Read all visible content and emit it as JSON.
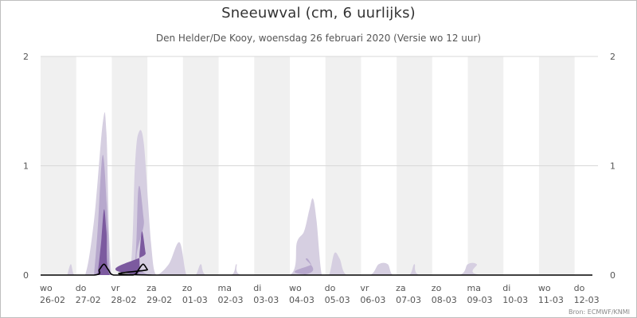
{
  "chart": {
    "title": "Sneeuwval (cm, 6 uurlijks)",
    "subtitle": "Den Helder/De Kooy, woensdag 26 februari 2020 (Versie wo 12 uur)",
    "source": "Bron: ECMWF/KNMI"
  },
  "colors": {
    "band_shade": "#f0f0f0",
    "outer_band": "#d6cfe1",
    "middle_band": "#b7a8cd",
    "inner_band": "#7c5a9f",
    "median_line": "#000000",
    "gridline": "#d8d8d8",
    "axis_text": "#555555"
  },
  "chart_data": {
    "type": "area",
    "x_unit": "day index (0 = wo 26-02 00:00), step 0.25 = 6 uur",
    "xlim": [
      0,
      15.5
    ],
    "ylim": [
      0,
      2
    ],
    "y_ticks": [
      0,
      1,
      2
    ],
    "grid": true,
    "shaded_alternate_days": true,
    "x_tick_labels": [
      {
        "day": "wo",
        "date": "26-02"
      },
      {
        "day": "do",
        "date": "27-02"
      },
      {
        "day": "vr",
        "date": "28-02"
      },
      {
        "day": "za",
        "date": "29-02"
      },
      {
        "day": "zo",
        "date": "01-03"
      },
      {
        "day": "ma",
        "date": "02-03"
      },
      {
        "day": "di",
        "date": "03-03"
      },
      {
        "day": "wo",
        "date": "04-03"
      },
      {
        "day": "do",
        "date": "05-03"
      },
      {
        "day": "vr",
        "date": "06-03"
      },
      {
        "day": "za",
        "date": "07-03"
      },
      {
        "day": "zo",
        "date": "08-03"
      },
      {
        "day": "ma",
        "date": "09-03"
      },
      {
        "day": "di",
        "date": "10-03"
      },
      {
        "day": "wo",
        "date": "11-03"
      },
      {
        "day": "do",
        "date": "12-03"
      }
    ],
    "series": [
      {
        "role": "outer_band",
        "points": [
          [
            0.75,
            0
          ],
          [
            0.85,
            0.1
          ],
          [
            0.95,
            0
          ],
          [
            1.25,
            0
          ],
          [
            1.5,
            0.5
          ],
          [
            1.75,
            1.4
          ],
          [
            1.85,
            1.3
          ],
          [
            2.0,
            0
          ],
          [
            2.5,
            0
          ],
          [
            2.65,
            1.0
          ],
          [
            2.75,
            1.3
          ],
          [
            2.9,
            1.2
          ],
          [
            3.1,
            0.3
          ],
          [
            3.25,
            0
          ],
          [
            3.6,
            0.1
          ],
          [
            3.9,
            0.3
          ],
          [
            4.1,
            0
          ],
          [
            4.35,
            0
          ],
          [
            4.5,
            0.1
          ],
          [
            4.65,
            0
          ],
          [
            5.35,
            0
          ],
          [
            5.5,
            0.1
          ],
          [
            5.65,
            0
          ],
          [
            7.0,
            0
          ],
          [
            7.2,
            0.3
          ],
          [
            7.4,
            0.4
          ],
          [
            7.55,
            0.6
          ],
          [
            7.65,
            0.7
          ],
          [
            7.75,
            0.5
          ],
          [
            7.9,
            0
          ],
          [
            8.1,
            0
          ],
          [
            8.25,
            0.2
          ],
          [
            8.4,
            0.15
          ],
          [
            8.6,
            0
          ],
          [
            9.25,
            0
          ],
          [
            9.5,
            0.1
          ],
          [
            9.75,
            0.1
          ],
          [
            9.9,
            0
          ],
          [
            10.35,
            0
          ],
          [
            10.5,
            0.1
          ],
          [
            10.65,
            0
          ],
          [
            11.75,
            0
          ],
          [
            12.0,
            0.1
          ],
          [
            12.25,
            0.1
          ],
          [
            12.4,
            0
          ],
          [
            15.5,
            0
          ]
        ]
      },
      {
        "role": "middle_band",
        "points": [
          [
            1.5,
            0
          ],
          [
            1.6,
            0.4
          ],
          [
            1.75,
            1.1
          ],
          [
            1.9,
            0.4
          ],
          [
            2.0,
            0
          ],
          [
            2.6,
            0
          ],
          [
            2.75,
            0.8
          ],
          [
            2.9,
            0.5
          ],
          [
            3.05,
            0
          ],
          [
            7.3,
            0
          ],
          [
            7.45,
            0.15
          ],
          [
            7.6,
            0.1
          ],
          [
            7.75,
            0
          ],
          [
            15.5,
            0
          ]
        ]
      },
      {
        "role": "inner_band",
        "points": [
          [
            1.6,
            0
          ],
          [
            1.7,
            0.3
          ],
          [
            1.78,
            0.6
          ],
          [
            1.85,
            0.4
          ],
          [
            1.95,
            0
          ],
          [
            2.7,
            0
          ],
          [
            2.78,
            0.2
          ],
          [
            2.85,
            0.4
          ],
          [
            2.95,
            0.2
          ],
          [
            3.05,
            0
          ],
          [
            15.5,
            0
          ]
        ]
      },
      {
        "role": "median_line",
        "points": [
          [
            0,
            0
          ],
          [
            1.5,
            0
          ],
          [
            1.65,
            0.05
          ],
          [
            1.78,
            0.1
          ],
          [
            1.9,
            0.05
          ],
          [
            2.05,
            0
          ],
          [
            2.6,
            0
          ],
          [
            2.75,
            0.05
          ],
          [
            2.88,
            0.1
          ],
          [
            3.0,
            0.05
          ],
          [
            3.15,
            0
          ],
          [
            15.5,
            0
          ]
        ]
      }
    ]
  }
}
